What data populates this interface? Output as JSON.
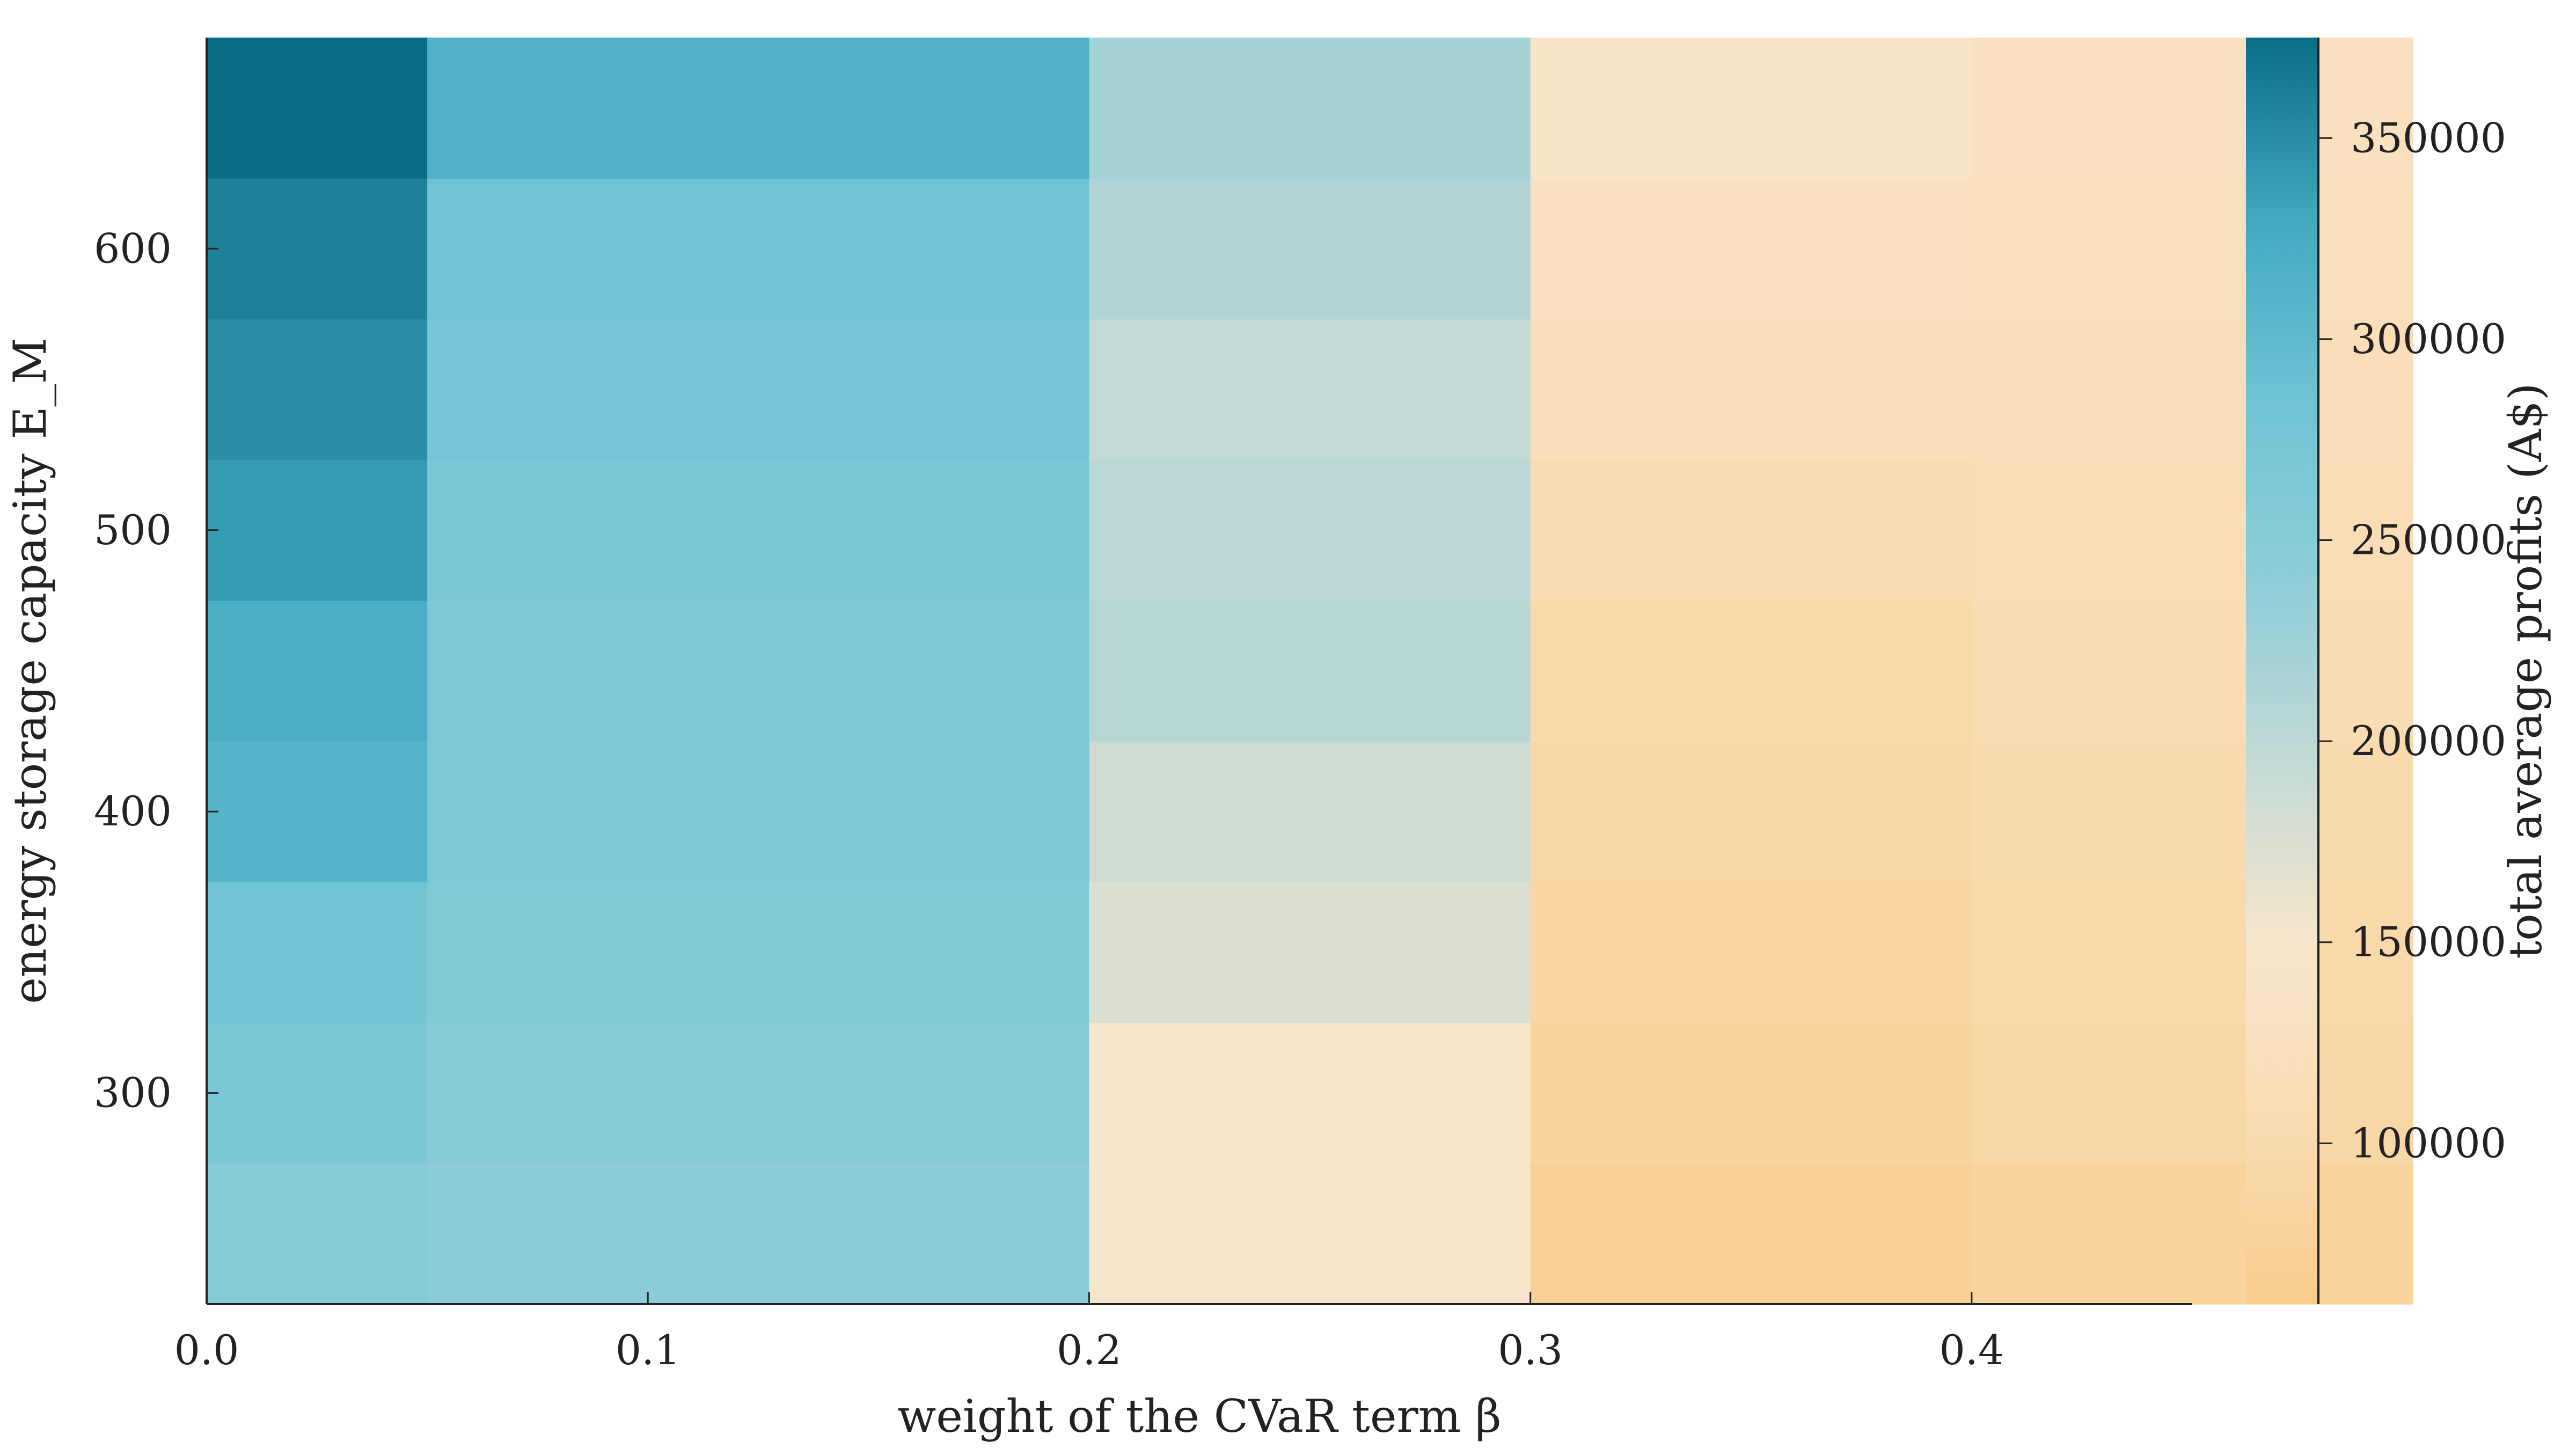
{
  "chart_data": {
    "type": "heatmap",
    "xlabel": "weight of the CVaR term β",
    "ylabel": "energy storage capacity E_M",
    "colorbar_label": "total average profits (A$)",
    "x": [
      0.0,
      0.1,
      0.2,
      0.3,
      0.4
    ],
    "x_cells": [
      0.0,
      0.05,
      0.1,
      0.2,
      0.3,
      0.4
    ],
    "x_cell_widths": [
      0.05,
      0.05,
      0.1,
      0.1,
      0.1,
      0.1
    ],
    "y_cells": [
      250,
      300,
      350,
      400,
      450,
      500,
      550,
      600,
      650
    ],
    "y_cell_height": 50,
    "xlim": [
      0.0,
      0.45
    ],
    "ylim": [
      225,
      675
    ],
    "xticks": [
      0.0,
      0.1,
      0.2,
      0.3,
      0.4
    ],
    "xtick_labels": [
      "0.0",
      "0.1",
      "0.2",
      "0.3",
      "0.4"
    ],
    "yticks": [
      300,
      400,
      500,
      600
    ],
    "ytick_labels": [
      "300",
      "400",
      "500",
      "600"
    ],
    "colorbar": {
      "range": [
        60000,
        375000
      ],
      "ticks": [
        100000,
        150000,
        200000,
        250000,
        300000,
        350000
      ],
      "tick_labels": [
        "100000",
        "150000",
        "200000",
        "250000",
        "300000",
        "350000"
      ],
      "colors": [
        "#f7cc8c",
        "#f9dcb3",
        "#f8e6cc",
        "#c2d9d6",
        "#8ecdd8",
        "#6fc3d5",
        "#41a8c0",
        "#0b6d86"
      ]
    },
    "values": [
      [
        255000,
        245000,
        245000,
        150000,
        70000,
        80000
      ],
      [
        270000,
        255000,
        255000,
        150000,
        80000,
        90000
      ],
      [
        280000,
        260000,
        260000,
        175000,
        85000,
        95000
      ],
      [
        310000,
        265000,
        265000,
        185000,
        90000,
        100000
      ],
      [
        320000,
        265000,
        265000,
        205000,
        95000,
        105000
      ],
      [
        340000,
        270000,
        270000,
        200000,
        105000,
        110000
      ],
      [
        350000,
        275000,
        275000,
        195000,
        115000,
        115000
      ],
      [
        360000,
        285000,
        285000,
        210000,
        125000,
        120000
      ],
      [
        375000,
        315000,
        315000,
        220000,
        140000,
        125000
      ]
    ],
    "grid": false,
    "legend": "colorbar-right"
  }
}
